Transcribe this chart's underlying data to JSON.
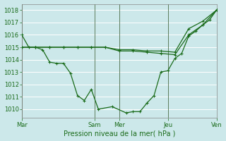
{
  "xlabel": "Pression niveau de la mer( hPa )",
  "background_color": "#cce8ea",
  "grid_color": "#ffffff",
  "line_color": "#1a6b1a",
  "ylim": [
    1009.3,
    1018.5
  ],
  "yticks": [
    1010,
    1011,
    1012,
    1013,
    1014,
    1015,
    1016,
    1017,
    1018
  ],
  "day_labels": [
    "Mar",
    "Sam",
    "Mer",
    "Jeu",
    "Ven"
  ],
  "day_positions": [
    0.0,
    0.375,
    0.5,
    0.75,
    1.0
  ],
  "vline_positions": [
    0.0,
    0.375,
    0.5,
    0.75,
    1.0
  ],
  "line1_x": [
    0.0,
    0.036,
    0.071,
    0.107,
    0.143,
    0.179,
    0.214,
    0.25,
    0.286,
    0.321,
    0.357,
    0.393,
    0.464,
    0.536,
    0.571,
    0.607,
    0.643,
    0.679,
    0.714,
    0.75,
    0.786,
    0.821,
    0.857,
    0.893,
    0.929,
    0.964,
    1.0
  ],
  "line1_y": [
    1016.0,
    1015.0,
    1015.0,
    1014.8,
    1013.8,
    1013.7,
    1013.7,
    1012.9,
    1011.1,
    1010.7,
    1011.6,
    1010.0,
    1010.2,
    1009.7,
    1009.8,
    1009.8,
    1010.5,
    1011.1,
    1013.0,
    1013.1,
    1014.1,
    1014.5,
    1015.9,
    1016.3,
    1016.8,
    1017.2,
    1018.0
  ],
  "line2_x": [
    0.0,
    0.071,
    0.143,
    0.214,
    0.286,
    0.357,
    0.429,
    0.5,
    0.571,
    0.643,
    0.714,
    0.786,
    0.857,
    0.929,
    1.0
  ],
  "line2_y": [
    1015.0,
    1015.0,
    1015.0,
    1015.0,
    1015.0,
    1015.0,
    1015.0,
    1014.8,
    1014.8,
    1014.7,
    1014.7,
    1014.6,
    1016.5,
    1017.1,
    1018.0
  ],
  "line3_x": [
    0.0,
    0.071,
    0.143,
    0.214,
    0.286,
    0.357,
    0.429,
    0.5,
    0.571,
    0.643,
    0.714,
    0.786,
    0.857,
    0.929,
    1.0
  ],
  "line3_y": [
    1015.0,
    1015.0,
    1015.0,
    1015.0,
    1015.0,
    1015.0,
    1015.0,
    1014.7,
    1014.7,
    1014.6,
    1014.5,
    1014.4,
    1016.0,
    1016.8,
    1018.0
  ],
  "vline_color": "#5a7a5a",
  "xlabel_fontsize": 7,
  "ytick_fontsize": 6,
  "xtick_fontsize": 6
}
